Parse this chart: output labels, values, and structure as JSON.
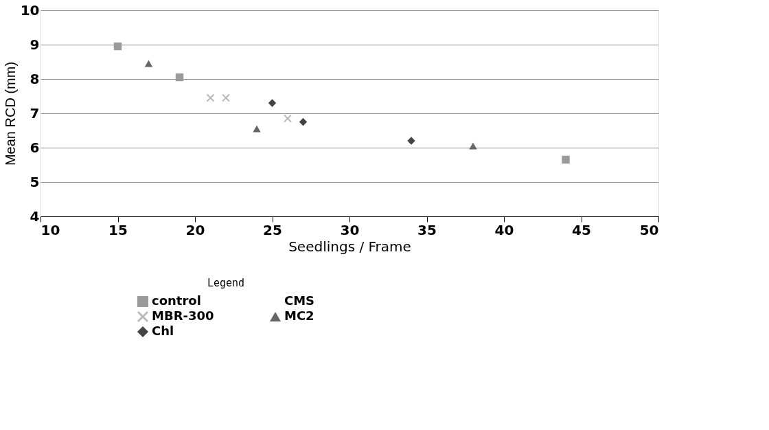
{
  "chart_data": {
    "type": "scatter",
    "xlabel": "Seedlings / Frame",
    "ylabel": "Mean RCD (mm)",
    "legend_title": "Legend",
    "legend": "bottom",
    "grid": "y",
    "xlim": [
      10,
      50
    ],
    "xticks": [
      10,
      15,
      20,
      25,
      30,
      35,
      40,
      45,
      50
    ],
    "ylim": [
      4,
      10
    ],
    "yticks": [
      4,
      5,
      6,
      7,
      8,
      9,
      10
    ],
    "series": [
      {
        "name": "control",
        "color": "#9a9a9a",
        "marker": "square",
        "x": [
          15,
          19,
          44
        ],
        "values": [
          8.95,
          8.05,
          5.65
        ]
      },
      {
        "name": "CMS",
        "marker": "none"
      },
      {
        "name": "MBR-300",
        "color": "#b8b8c4",
        "marker": "cross",
        "x": [
          21,
          22,
          26
        ],
        "values": [
          7.45,
          7.45,
          6.85
        ]
      },
      {
        "name": "MC2",
        "color": "#666666",
        "marker": "triangle",
        "x": [
          17,
          24,
          38
        ],
        "values": [
          8.45,
          6.55,
          6.05
        ]
      },
      {
        "name": "Chl",
        "color": "#444444",
        "marker": "diamond",
        "x": [
          25,
          27,
          34
        ],
        "values": [
          7.3,
          6.75,
          6.2
        ]
      }
    ]
  }
}
